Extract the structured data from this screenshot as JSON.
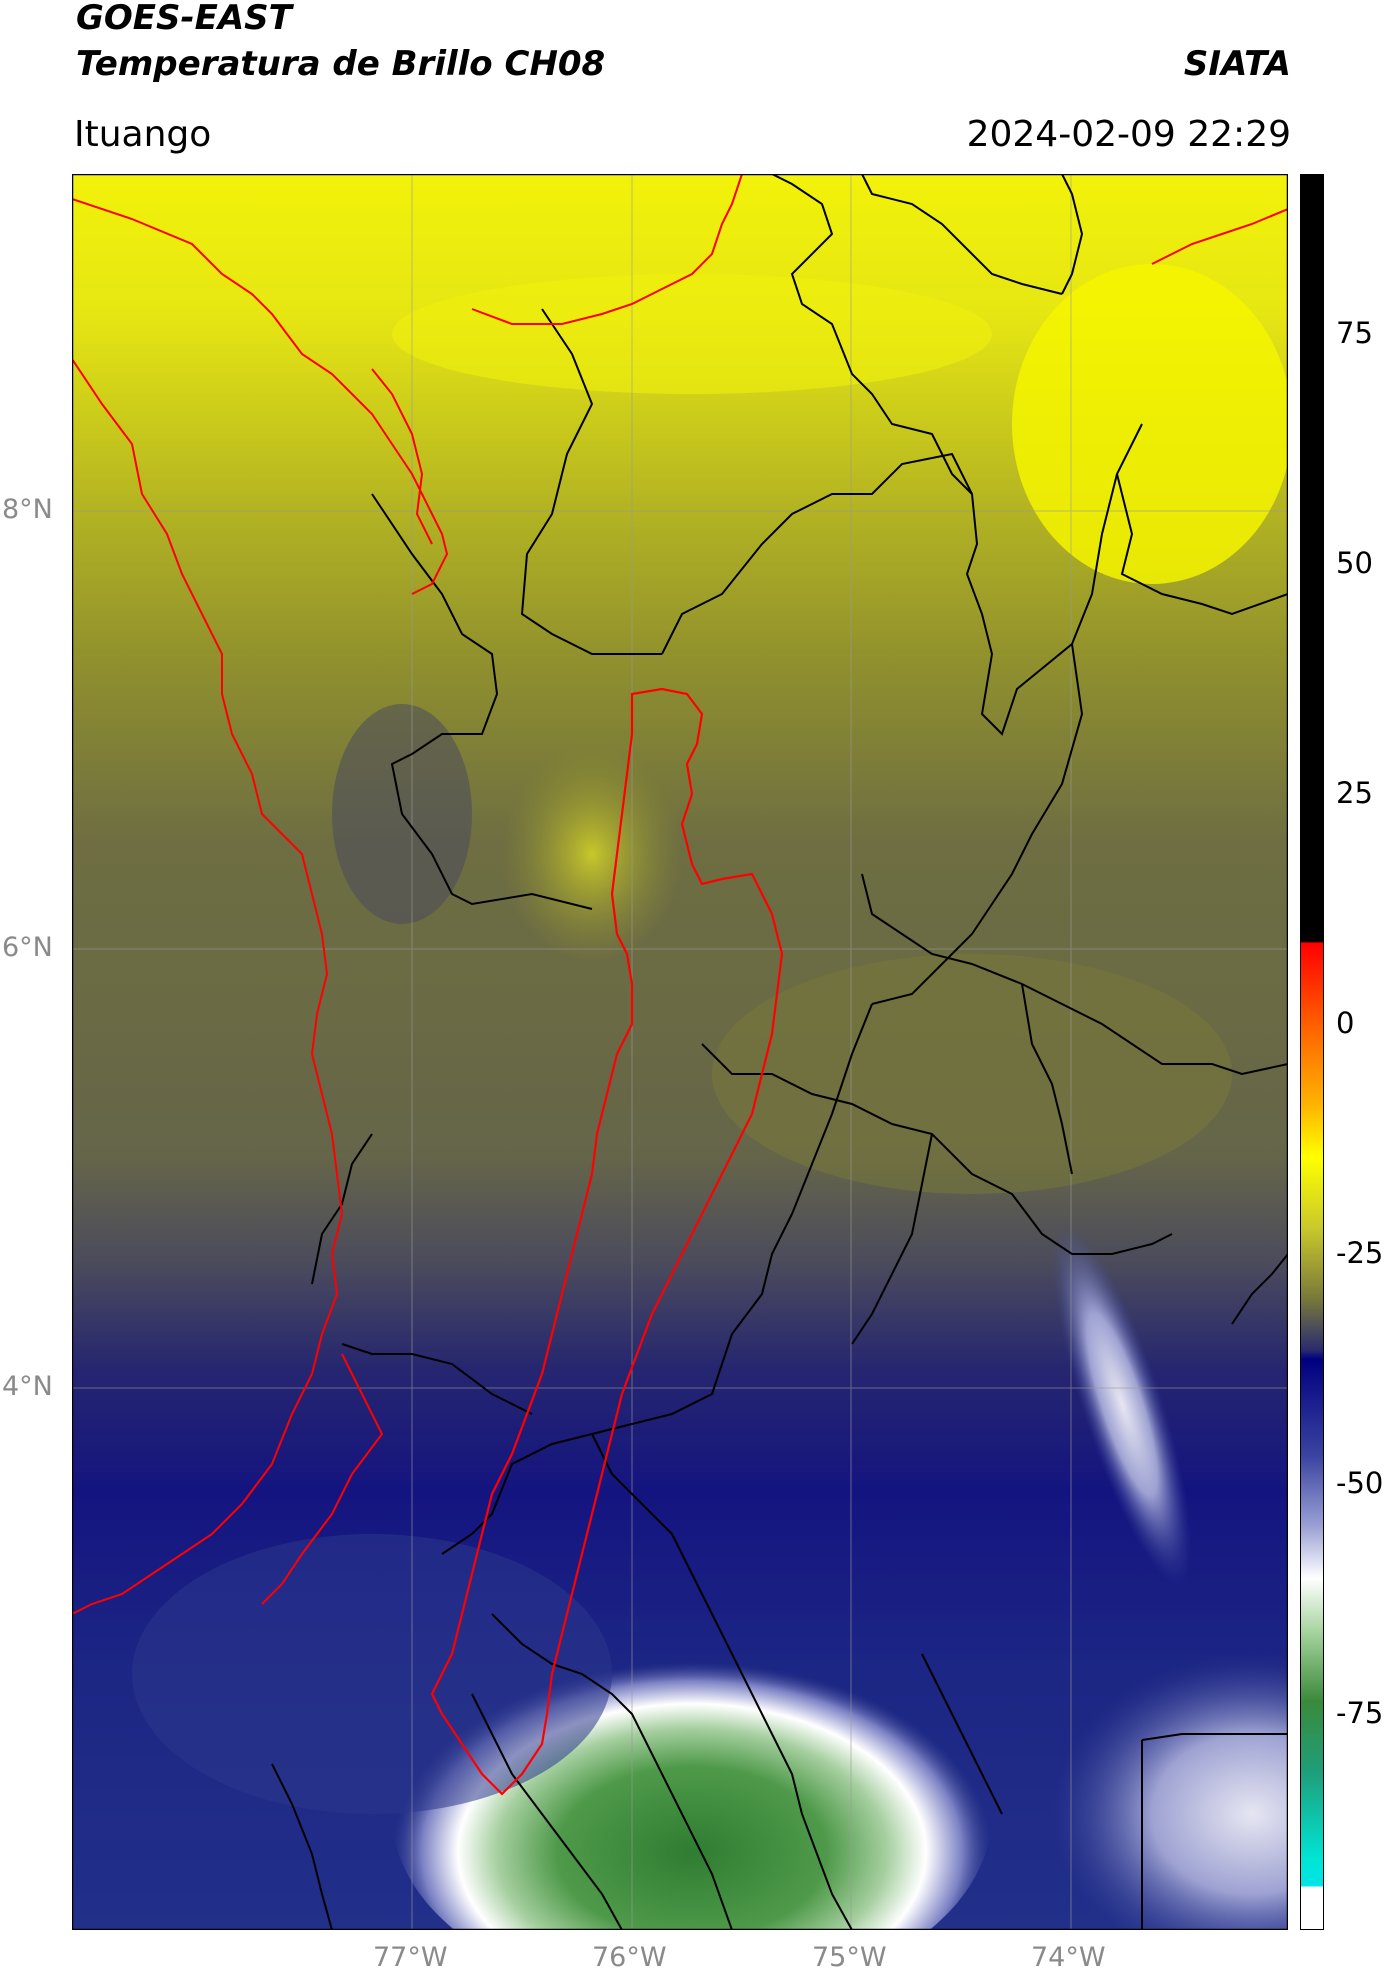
{
  "header": {
    "title_line1": "GOES-EAST",
    "title_line2": "Temperatura de Brillo CH08",
    "agency": "SIATA",
    "location": "Ituango",
    "datetime": "2024-02-09 22:29"
  },
  "map": {
    "lat_labels": [
      "8°N",
      "6°N",
      "4°N"
    ],
    "lon_labels": [
      "77°W",
      "76°W",
      "75°W",
      "74°W"
    ],
    "border_color": "#000000",
    "basin_outline_color": "#ff0000"
  },
  "colorbar": {
    "ticks": [
      "75",
      "50",
      "25",
      "0",
      "-25",
      "-50",
      "-75"
    ],
    "range": [
      -90,
      90
    ],
    "colors": {
      "warm_top": "#000000",
      "red": "#ff0000",
      "orange": "#ff9900",
      "yellow": "#ffff00",
      "olive": "#7a7a3a",
      "navy": "#000080",
      "white": "#ffffff",
      "green": "#2e7d32",
      "teal": "#00e5e5"
    }
  }
}
